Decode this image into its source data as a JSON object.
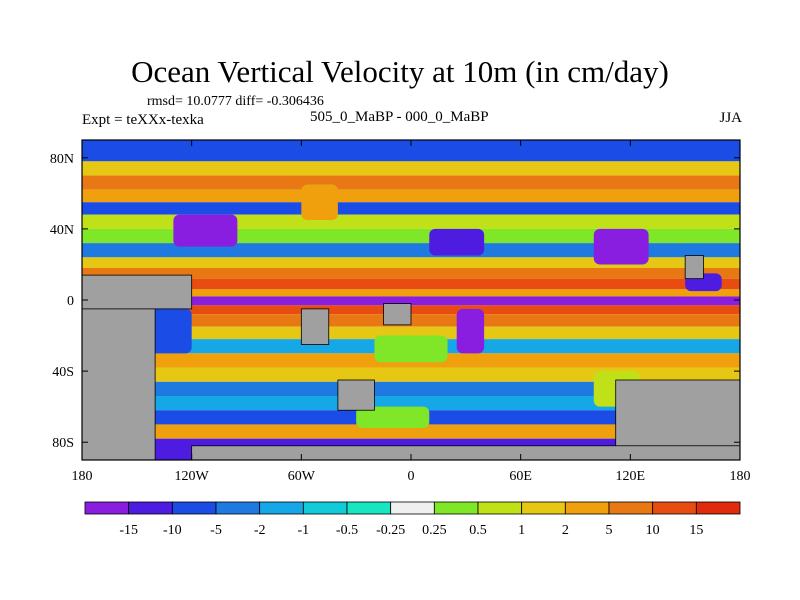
{
  "title": "Ocean Vertical Velocity at 10m (in cm/day)",
  "stats": "rmsd= 10.0777 diff= -0.306436",
  "experiment": "Expt = teXXx-texka",
  "difference_label": "505_0_MaBP - 000_0_MaBP",
  "season": "JJA",
  "chart_data": {
    "type": "heatmap",
    "title": "Ocean Vertical Velocity at 10m (in cm/day)",
    "units": "cm/day",
    "xlim": [
      -180,
      180
    ],
    "ylim": [
      -90,
      90
    ],
    "x_ticks": [
      {
        "value": -180,
        "label": "180"
      },
      {
        "value": -120,
        "label": "120W"
      },
      {
        "value": -60,
        "label": "60W"
      },
      {
        "value": 0,
        "label": "0"
      },
      {
        "value": 60,
        "label": "60E"
      },
      {
        "value": 120,
        "label": "120E"
      },
      {
        "value": 180,
        "label": "180"
      }
    ],
    "y_ticks": [
      {
        "value": 80,
        "label": "80N"
      },
      {
        "value": 40,
        "label": "40N"
      },
      {
        "value": 0,
        "label": "0"
      },
      {
        "value": -40,
        "label": "40S"
      },
      {
        "value": -80,
        "label": "80S"
      }
    ],
    "levels": [
      "-15",
      "-10",
      "-5",
      "-2",
      "-1",
      "-0.5",
      "-0.25",
      "0.25",
      "0.5",
      "1",
      "2",
      "5",
      "10",
      "15"
    ],
    "colors": [
      "#8a1ee0",
      "#4d1ce0",
      "#1c4ce6",
      "#1e7ae0",
      "#16a8e6",
      "#12cad8",
      "#18e6c0",
      "#f0f0f0",
      "#80e628",
      "#c0e018",
      "#e6c814",
      "#f0a00c",
      "#e87814",
      "#e84c10",
      "#e02c0c"
    ],
    "land_color": "#a0a0a0",
    "zonal_bands": [
      {
        "lat_from": 90,
        "lat_to": 78,
        "value": -5
      },
      {
        "lat_from": 78,
        "lat_to": 70,
        "value": 2
      },
      {
        "lat_from": 70,
        "lat_to": 62,
        "value": 10
      },
      {
        "lat_from": 62,
        "lat_to": 55,
        "value": 5
      },
      {
        "lat_from": 55,
        "lat_to": 48,
        "value": -5
      },
      {
        "lat_from": 48,
        "lat_to": 40,
        "value": 1
      },
      {
        "lat_from": 40,
        "lat_to": 32,
        "value": 0.3
      },
      {
        "lat_from": 32,
        "lat_to": 24,
        "value": -2
      },
      {
        "lat_from": 24,
        "lat_to": 18,
        "value": 2
      },
      {
        "lat_from": 18,
        "lat_to": 12,
        "value": 10
      },
      {
        "lat_from": 12,
        "lat_to": 6,
        "value": 15
      },
      {
        "lat_from": 6,
        "lat_to": 2,
        "value": 5
      },
      {
        "lat_from": 2,
        "lat_to": -3,
        "value": -15
      },
      {
        "lat_from": -3,
        "lat_to": -8,
        "value": 15
      },
      {
        "lat_from": -8,
        "lat_to": -15,
        "value": 10
      },
      {
        "lat_from": -15,
        "lat_to": -22,
        "value": 2
      },
      {
        "lat_from": -22,
        "lat_to": -30,
        "value": -1
      },
      {
        "lat_from": -30,
        "lat_to": -38,
        "value": 5
      },
      {
        "lat_from": -38,
        "lat_to": -46,
        "value": 2
      },
      {
        "lat_from": -46,
        "lat_to": -54,
        "value": -2
      },
      {
        "lat_from": -54,
        "lat_to": -62,
        "value": -1
      },
      {
        "lat_from": -62,
        "lat_to": -70,
        "value": -5
      },
      {
        "lat_from": -70,
        "lat_to": -78,
        "value": 5
      },
      {
        "lat_from": -78,
        "lat_to": -90,
        "value": -10
      }
    ],
    "anomalies": [
      {
        "lon_from": -130,
        "lon_to": -95,
        "lat_from": 48,
        "lat_to": 30,
        "value": -15
      },
      {
        "lon_from": -60,
        "lon_to": -40,
        "lat_from": 65,
        "lat_to": 45,
        "value": 5
      },
      {
        "lon_from": 10,
        "lon_to": 40,
        "lat_from": 40,
        "lat_to": 25,
        "value": -10
      },
      {
        "lon_from": 100,
        "lon_to": 130,
        "lat_from": 40,
        "lat_to": 20,
        "value": -15
      },
      {
        "lon_from": 150,
        "lon_to": 170,
        "lat_from": 15,
        "lat_to": 5,
        "value": -10
      },
      {
        "lon_from": -170,
        "lon_to": -120,
        "lat_from": -5,
        "lat_to": -30,
        "value": -5
      },
      {
        "lon_from": -20,
        "lon_to": 20,
        "lat_from": -20,
        "lat_to": -35,
        "value": 0.3
      },
      {
        "lon_from": 25,
        "lon_to": 40,
        "lat_from": -5,
        "lat_to": -30,
        "value": -15
      },
      {
        "lon_from": 100,
        "lon_to": 125,
        "lat_from": -40,
        "lat_to": -60,
        "value": 1
      },
      {
        "lon_from": -30,
        "lon_to": 10,
        "lat_from": -60,
        "lat_to": -72,
        "value": 0.3
      }
    ],
    "land_regions": [
      {
        "name": "north-america",
        "lon_from": -180,
        "lon_to": -120,
        "lat_from": 14,
        "lat_to": -5
      },
      {
        "name": "west-landmass",
        "lon_from": -180,
        "lon_to": -140,
        "lat_from": -5,
        "lat_to": -90
      },
      {
        "name": "south-america",
        "lon_from": -60,
        "lon_to": -45,
        "lat_from": -5,
        "lat_to": -25
      },
      {
        "name": "south-atlantic-island",
        "lon_from": -40,
        "lon_to": -20,
        "lat_from": -45,
        "lat_to": -62
      },
      {
        "name": "africa-west",
        "lon_from": -15,
        "lon_to": 0,
        "lat_from": -2,
        "lat_to": -14
      },
      {
        "name": "asia-east",
        "lon_from": 150,
        "lon_to": 160,
        "lat_from": 25,
        "lat_to": 12
      },
      {
        "name": "australia",
        "lon_from": 112,
        "lon_to": 180,
        "lat_from": -45,
        "lat_to": -90
      },
      {
        "name": "antarctica",
        "lon_from": -120,
        "lon_to": 180,
        "lat_from": -82,
        "lat_to": -90
      }
    ]
  }
}
